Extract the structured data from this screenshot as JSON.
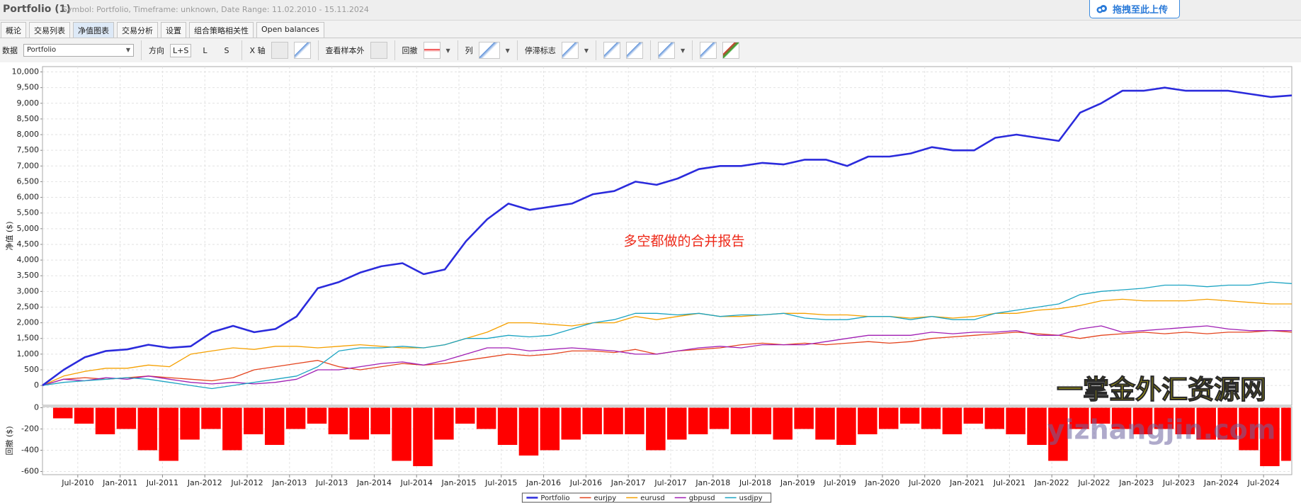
{
  "header": {
    "title": "Portfolio (1)",
    "subtitle": "Symbol: Portfolio, Timeframe: unknown, Date Range: 11.02.2010 - 15.11.2024",
    "upload_button": "拖拽至此上传"
  },
  "tabs": [
    "概论",
    "交易列表",
    "净值图表",
    "交易分析",
    "设置",
    "组合策略相关性",
    "Open balances"
  ],
  "toolbar": {
    "data_label": "数据",
    "data_value": "Portfolio",
    "direction_label": "方向",
    "direction_options": [
      "L+S",
      "L",
      "S"
    ],
    "x_axis_label": "X 轴",
    "out_of_sample_label": "查看样本外",
    "drawdown_label": "回撤",
    "columns_label": "列",
    "stagnation_label": "停滞标志"
  },
  "watermark": {
    "title": "一掌金外汇资源网",
    "url": "yizhangjin.com"
  },
  "chart_data": [
    {
      "type": "line",
      "y_label": "净值 ($)",
      "annotation": "多空都做的合并报告",
      "grid": true,
      "legend": "bottom",
      "x": [
        "2010-02",
        "2010-05",
        "2010-08",
        "2010-11",
        "2011-02",
        "2011-05",
        "2011-08",
        "2011-11",
        "2012-02",
        "2012-05",
        "2012-08",
        "2012-11",
        "2013-02",
        "2013-05",
        "2013-08",
        "2013-11",
        "2014-02",
        "2014-05",
        "2014-08",
        "2014-11",
        "2015-02",
        "2015-05",
        "2015-08",
        "2015-11",
        "2016-02",
        "2016-05",
        "2016-08",
        "2016-11",
        "2017-02",
        "2017-05",
        "2017-08",
        "2017-11",
        "2018-02",
        "2018-05",
        "2018-08",
        "2018-11",
        "2019-02",
        "2019-05",
        "2019-08",
        "2019-11",
        "2020-02",
        "2020-05",
        "2020-08",
        "2020-11",
        "2021-02",
        "2021-05",
        "2021-08",
        "2021-11",
        "2022-02",
        "2022-05",
        "2022-08",
        "2022-11",
        "2023-02",
        "2023-05",
        "2023-08",
        "2023-11",
        "2024-02",
        "2024-05",
        "2024-08",
        "2024-11"
      ],
      "xlim": [
        "2010-02",
        "2024-11"
      ],
      "xticks": [
        {
          "value": "2010-07",
          "label": "Jul-2010"
        },
        {
          "value": "2011-01",
          "label": "Jan-2011"
        },
        {
          "value": "2011-07",
          "label": "Jul-2011"
        },
        {
          "value": "2012-01",
          "label": "Jan-2012"
        },
        {
          "value": "2012-07",
          "label": "Jul-2012"
        },
        {
          "value": "2013-01",
          "label": "Jan-2013"
        },
        {
          "value": "2013-07",
          "label": "Jul-2013"
        },
        {
          "value": "2014-01",
          "label": "Jan-2014"
        },
        {
          "value": "2014-07",
          "label": "Jul-2014"
        },
        {
          "value": "2015-01",
          "label": "Jan-2015"
        },
        {
          "value": "2015-07",
          "label": "Jul-2015"
        },
        {
          "value": "2016-01",
          "label": "Jan-2016"
        },
        {
          "value": "2016-07",
          "label": "Jul-2016"
        },
        {
          "value": "2017-01",
          "label": "Jan-2017"
        },
        {
          "value": "2017-07",
          "label": "Jul-2017"
        },
        {
          "value": "2018-01",
          "label": "Jan-2018"
        },
        {
          "value": "2018-07",
          "label": "Jul-2018"
        },
        {
          "value": "2019-01",
          "label": "Jan-2019"
        },
        {
          "value": "2019-07",
          "label": "Jul-2019"
        },
        {
          "value": "2020-01",
          "label": "Jan-2020"
        },
        {
          "value": "2020-07",
          "label": "Jul-2020"
        },
        {
          "value": "2021-01",
          "label": "Jan-2021"
        },
        {
          "value": "2021-07",
          "label": "Jul-2021"
        },
        {
          "value": "2022-01",
          "label": "Jan-2022"
        },
        {
          "value": "2022-07",
          "label": "Jul-2022"
        },
        {
          "value": "2023-01",
          "label": "Jan-2023"
        },
        {
          "value": "2023-07",
          "label": "Jul-2023"
        },
        {
          "value": "2024-01",
          "label": "Jan-2024"
        },
        {
          "value": "2024-07",
          "label": "Jul-2024"
        }
      ],
      "ylim": [
        -630,
        10170
      ],
      "yticks": [
        0,
        500,
        {
          "value": 1000,
          "label": "1,000"
        },
        {
          "value": 1500,
          "label": "1,500"
        },
        {
          "value": 2000,
          "label": "2,000"
        },
        {
          "value": 2500,
          "label": "2,500"
        },
        {
          "value": 3000,
          "label": "3,000"
        },
        {
          "value": 3500,
          "label": "3,500"
        },
        {
          "value": 4000,
          "label": "4,000"
        },
        {
          "value": 4500,
          "label": "4,500"
        },
        {
          "value": 5000,
          "label": "5,000"
        },
        {
          "value": 5500,
          "label": "5,500"
        },
        {
          "value": 6000,
          "label": "6,000"
        },
        {
          "value": 6500,
          "label": "6,500"
        },
        {
          "value": 7000,
          "label": "7,000"
        },
        {
          "value": 7500,
          "label": "7,500"
        },
        {
          "value": 8000,
          "label": "8,000"
        },
        {
          "value": 8500,
          "label": "8,500"
        },
        {
          "value": 9000,
          "label": "9,000"
        },
        {
          "value": 9500,
          "label": "9,500"
        },
        {
          "value": 10000,
          "label": "10,000"
        }
      ],
      "series": [
        {
          "name": "Portfolio",
          "color": "#2b2bdc",
          "values": [
            0,
            500,
            900,
            1100,
            1150,
            1300,
            1200,
            1250,
            1700,
            1900,
            1700,
            1800,
            2200,
            3100,
            3300,
            3600,
            3800,
            3900,
            3550,
            3700,
            4600,
            5300,
            5800,
            5600,
            5700,
            5800,
            6100,
            6200,
            6500,
            6400,
            6600,
            6900,
            7000,
            7000,
            7100,
            7050,
            7200,
            7200,
            7000,
            7300,
            7300,
            7400,
            7600,
            7500,
            7500,
            7900,
            8000,
            7900,
            7800,
            8700,
            9000,
            9400,
            9400,
            9500,
            9400,
            9400,
            9400,
            9300,
            9200,
            9250
          ]
        },
        {
          "name": "eurjpy",
          "color": "#e4441e",
          "values": [
            0,
            200,
            250,
            200,
            250,
            300,
            250,
            200,
            150,
            250,
            500,
            600,
            700,
            800,
            600,
            500,
            600,
            700,
            650,
            700,
            800,
            900,
            1000,
            950,
            1000,
            1100,
            1100,
            1050,
            1150,
            1000,
            1100,
            1150,
            1200,
            1300,
            1350,
            1300,
            1350,
            1300,
            1350,
            1400,
            1350,
            1400,
            1500,
            1550,
            1600,
            1650,
            1700,
            1650,
            1600,
            1500,
            1600,
            1650,
            1700,
            1650,
            1700,
            1650,
            1700,
            1700,
            1750,
            1700
          ]
        },
        {
          "name": "eurusd",
          "color": "#f5a000",
          "values": [
            0,
            300,
            450,
            550,
            550,
            650,
            600,
            1000,
            1100,
            1200,
            1150,
            1250,
            1250,
            1200,
            1250,
            1300,
            1250,
            1200,
            1200,
            1300,
            1500,
            1700,
            2000,
            2000,
            1950,
            1900,
            2000,
            2000,
            2200,
            2100,
            2200,
            2300,
            2200,
            2200,
            2250,
            2300,
            2300,
            2250,
            2250,
            2200,
            2200,
            2150,
            2200,
            2150,
            2200,
            2300,
            2300,
            2400,
            2450,
            2550,
            2700,
            2750,
            2700,
            2700,
            2700,
            2750,
            2700,
            2650,
            2600,
            2600
          ]
        },
        {
          "name": "gbpusd",
          "color": "#a01fb4",
          "values": [
            0,
            200,
            150,
            250,
            200,
            300,
            200,
            100,
            50,
            100,
            50,
            100,
            200,
            500,
            500,
            600,
            700,
            750,
            650,
            800,
            1000,
            1200,
            1200,
            1100,
            1150,
            1200,
            1150,
            1100,
            1000,
            1000,
            1100,
            1200,
            1250,
            1200,
            1300,
            1300,
            1300,
            1400,
            1500,
            1600,
            1600,
            1600,
            1700,
            1650,
            1700,
            1700,
            1750,
            1600,
            1600,
            1800,
            1900,
            1700,
            1750,
            1800,
            1850,
            1900,
            1800,
            1750,
            1750,
            1750
          ]
        },
        {
          "name": "usdjpy",
          "color": "#1ca4c2",
          "values": [
            0,
            100,
            150,
            200,
            250,
            200,
            100,
            0,
            -100,
            0,
            100,
            200,
            300,
            600,
            1100,
            1200,
            1200,
            1250,
            1200,
            1300,
            1500,
            1500,
            1600,
            1550,
            1600,
            1800,
            2000,
            2100,
            2300,
            2300,
            2250,
            2300,
            2200,
            2250,
            2250,
            2300,
            2150,
            2100,
            2100,
            2200,
            2200,
            2100,
            2200,
            2100,
            2100,
            2300,
            2400,
            2500,
            2600,
            2900,
            3000,
            3050,
            3100,
            3200,
            3200,
            3150,
            3200,
            3200,
            3300,
            3250
          ]
        }
      ]
    },
    {
      "type": "bar",
      "y_label": "回撤 ($)",
      "color": "#ff0000",
      "grid": true,
      "x": [
        "2010-02",
        "2010-05",
        "2010-08",
        "2010-11",
        "2011-02",
        "2011-05",
        "2011-08",
        "2011-11",
        "2012-02",
        "2012-05",
        "2012-08",
        "2012-11",
        "2013-02",
        "2013-05",
        "2013-08",
        "2013-11",
        "2014-02",
        "2014-05",
        "2014-08",
        "2014-11",
        "2015-02",
        "2015-05",
        "2015-08",
        "2015-11",
        "2016-02",
        "2016-05",
        "2016-08",
        "2016-11",
        "2017-02",
        "2017-05",
        "2017-08",
        "2017-11",
        "2018-02",
        "2018-05",
        "2018-08",
        "2018-11",
        "2019-02",
        "2019-05",
        "2019-08",
        "2019-11",
        "2020-02",
        "2020-05",
        "2020-08",
        "2020-11",
        "2021-02",
        "2021-05",
        "2021-08",
        "2021-11",
        "2022-02",
        "2022-05",
        "2022-08",
        "2022-11",
        "2023-02",
        "2023-05",
        "2023-08",
        "2023-11",
        "2024-02",
        "2024-05",
        "2024-08",
        "2024-11"
      ],
      "values": [
        0,
        -100,
        -150,
        -250,
        -200,
        -400,
        -500,
        -300,
        -200,
        -400,
        -250,
        -350,
        -200,
        -150,
        -250,
        -300,
        -250,
        -500,
        -550,
        -300,
        -150,
        -200,
        -350,
        -450,
        -400,
        -300,
        -250,
        -250,
        -250,
        -400,
        -300,
        -250,
        -200,
        -250,
        -250,
        -300,
        -200,
        -300,
        -350,
        -250,
        -200,
        -150,
        -200,
        -250,
        -150,
        -200,
        -250,
        -350,
        -500,
        -200,
        -150,
        -200,
        -250,
        -200,
        -250,
        -300,
        -300,
        -400,
        -550,
        -500
      ],
      "ylim": [
        -630,
        10
      ],
      "yticks": [
        0,
        -200,
        -400,
        -600
      ]
    }
  ]
}
